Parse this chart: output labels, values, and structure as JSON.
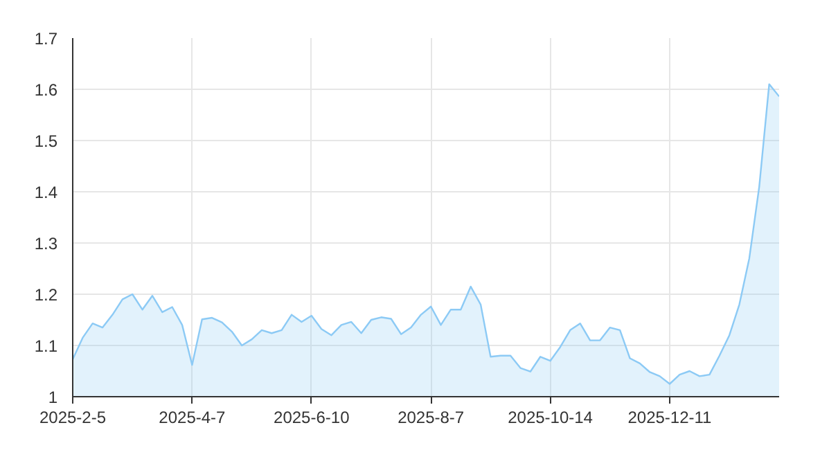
{
  "chart_data": {
    "type": "area",
    "categories": [
      "2025-2-5",
      null,
      null,
      null,
      null,
      null,
      null,
      null,
      null,
      null,
      null,
      null,
      "2025-4-7",
      null,
      null,
      null,
      null,
      null,
      null,
      null,
      null,
      null,
      null,
      null,
      "2025-6-10",
      null,
      null,
      null,
      null,
      null,
      null,
      null,
      null,
      null,
      null,
      null,
      "2025-8-7",
      null,
      null,
      null,
      null,
      null,
      null,
      null,
      null,
      null,
      null,
      null,
      "2025-10-14",
      null,
      null,
      null,
      null,
      null,
      null,
      null,
      null,
      null,
      null,
      null,
      "2025-12-11",
      null,
      null,
      null,
      null,
      null,
      null,
      null,
      null,
      null,
      null,
      null
    ],
    "series": [
      {
        "color": "#8ccaf5",
        "values": [
          1.073,
          1.115,
          1.143,
          1.135,
          1.16,
          1.19,
          1.2,
          1.17,
          1.197,
          1.165,
          1.175,
          1.14,
          1.062,
          1.151,
          1.154,
          1.145,
          1.127,
          1.1,
          1.112,
          1.13,
          1.124,
          1.13,
          1.16,
          1.146,
          1.158,
          1.132,
          1.12,
          1.14,
          1.146,
          1.124,
          1.15,
          1.155,
          1.152,
          1.122,
          1.135,
          1.16,
          1.176,
          1.14,
          1.17,
          1.17,
          1.215,
          1.18,
          1.078,
          1.08,
          1.08,
          1.056,
          1.049,
          1.078,
          1.07,
          1.097,
          1.13,
          1.143,
          1.11,
          1.11,
          1.135,
          1.13,
          1.075,
          1.065,
          1.048,
          1.04,
          1.025,
          1.043,
          1.05,
          1.04,
          1.043,
          1.08,
          1.12,
          1.18,
          1.27,
          1.41,
          1.61,
          1.586
        ]
      }
    ],
    "ylim": [
      1,
      1.7
    ],
    "yticks": [
      1,
      1.1,
      1.2,
      1.3,
      1.4,
      1.5,
      1.6,
      1.7
    ],
    "grid": true
  }
}
